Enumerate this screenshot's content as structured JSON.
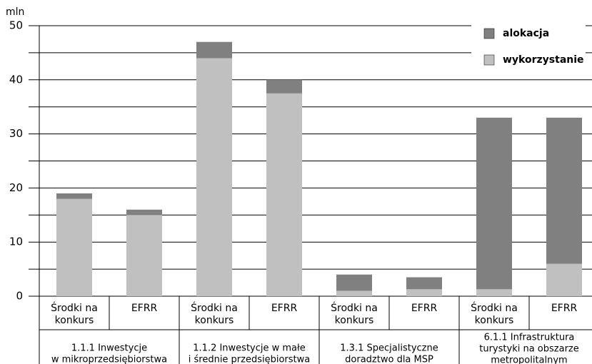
{
  "chart_data": {
    "type": "overlay_bar",
    "y_unit": "mln",
    "categories": [
      [
        "Środki na",
        "konkurs"
      ],
      [
        "EFRR"
      ],
      [
        "Środki na",
        "konkurs"
      ],
      [
        "EFRR"
      ],
      [
        "Środki na",
        "konkurs"
      ],
      [
        "EFRR"
      ],
      [
        "Środki na",
        "konkurs"
      ],
      [
        "EFRR"
      ]
    ],
    "groups": [
      [
        "1.1.1 Inwestycje",
        "w mikroprzedsiębiorstwa"
      ],
      [
        "1.1.2 Inwestycje w małe",
        "i średnie przedsiębiorstwa"
      ],
      [
        "1.3.1 Specjalistyczne",
        "doradztwo dla MSP"
      ],
      [
        "6.1.1 Infrastruktura",
        "turystyki na obszarze",
        "metropolitalnym"
      ]
    ],
    "series": [
      {
        "name": "alokacja",
        "color": "#808080",
        "values": [
          19,
          16,
          47,
          40,
          4,
          3.5,
          33,
          33
        ]
      },
      {
        "name": "wykorzystanie",
        "color": "#c0c0c0",
        "values": [
          18,
          15,
          44,
          37.5,
          1,
          1.3,
          1.3,
          6
        ]
      }
    ],
    "ylim": [
      0,
      50
    ],
    "yticks": [
      0,
      10,
      20,
      30,
      40,
      50
    ],
    "minor_yticks": [
      5,
      15,
      25,
      35,
      45
    ],
    "grid": true,
    "legend": "top-right"
  }
}
